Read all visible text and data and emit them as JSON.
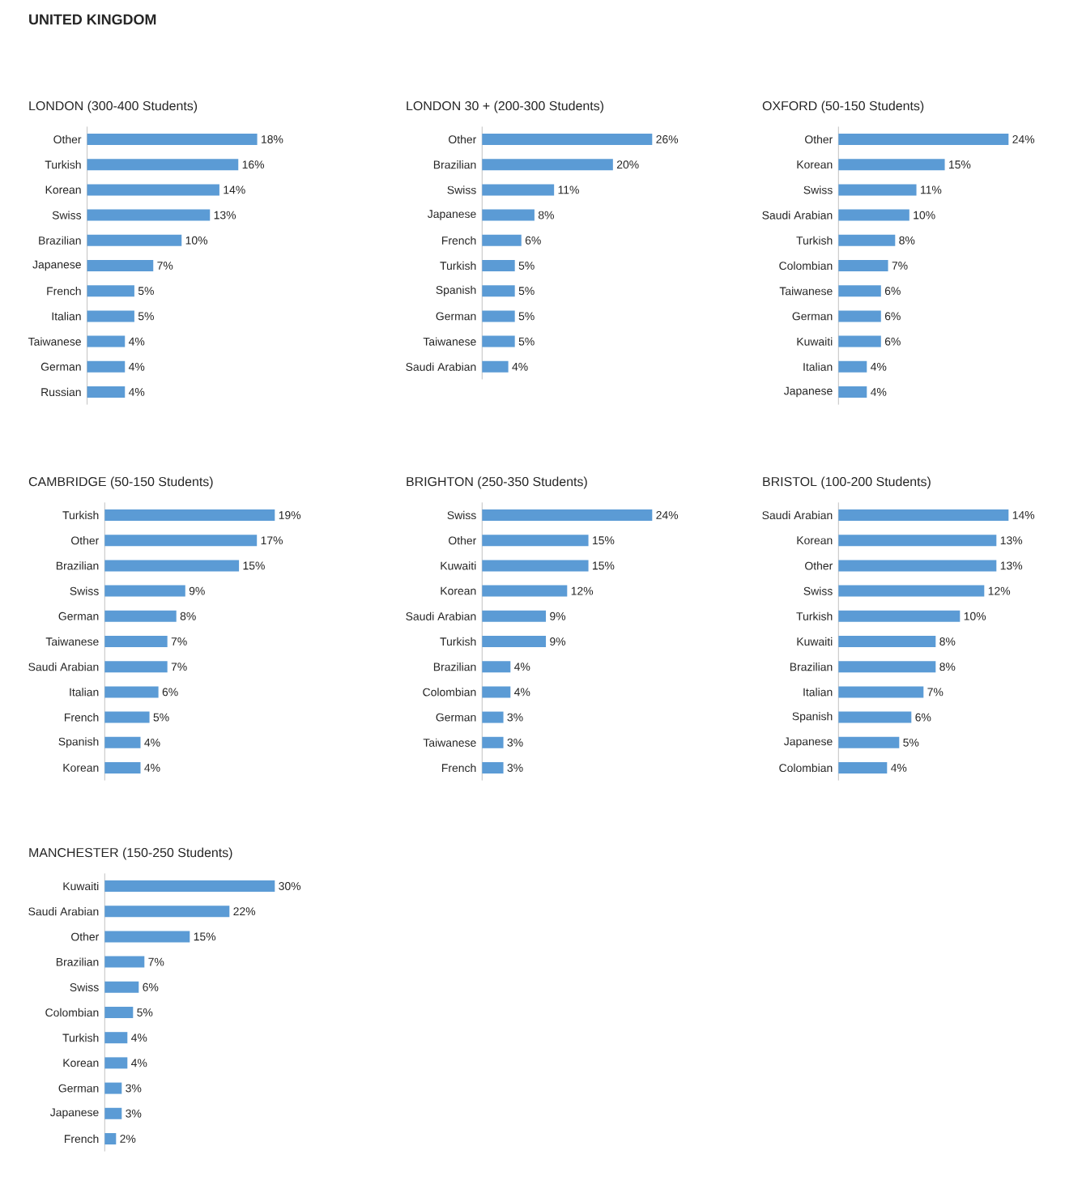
{
  "chart_data": [
    {
      "type": "other",
      "title": "UNITED KINGDOM"
    },
    {
      "type": "bar",
      "orientation": "horizontal",
      "title": "LONDON (300-400 Students)",
      "color": "#5b9bd5",
      "categories": [
        "Other",
        "Turkish",
        "Korean",
        "Swiss",
        "Brazilian",
        "Japanese",
        "French",
        "Italian",
        "Taiwanese",
        "German",
        "Russian"
      ],
      "values": [
        18,
        16,
        14,
        13,
        10,
        7,
        5,
        5,
        4,
        4,
        4
      ],
      "value_labels": [
        "18%",
        "16%",
        "14%",
        "13%",
        "10%",
        "7%",
        "5%",
        "5%",
        "4%",
        "4%",
        "4%"
      ]
    },
    {
      "type": "bar",
      "orientation": "horizontal",
      "title": "LONDON 30 + (200-300 Students)",
      "color": "#5b9bd5",
      "categories": [
        "Other",
        "Brazilian",
        "Swiss",
        "Japanese",
        "French",
        "Turkish",
        "Spanish",
        "German",
        "Taiwanese",
        "Saudi Arabian"
      ],
      "values": [
        26,
        20,
        11,
        8,
        6,
        5,
        5,
        5,
        5,
        4
      ],
      "value_labels": [
        "26%",
        "20%",
        "11%",
        "8%",
        "6%",
        "5%",
        "5%",
        "5%",
        "5%",
        "4%"
      ]
    },
    {
      "type": "bar",
      "orientation": "horizontal",
      "title": "OXFORD (50-150 Students)",
      "color": "#5b9bd5",
      "categories": [
        "Other",
        "Korean",
        "Swiss",
        "Saudi Arabian",
        "Turkish",
        "Colombian",
        "Taiwanese",
        "German",
        "Kuwaiti",
        "Italian",
        "Japanese"
      ],
      "values": [
        24,
        15,
        11,
        10,
        8,
        7,
        6,
        6,
        6,
        4,
        4
      ],
      "value_labels": [
        "24%",
        "15%",
        "11%",
        "10%",
        "8%",
        "7%",
        "6%",
        "6%",
        "6%",
        "4%",
        "4%"
      ]
    },
    {
      "type": "bar",
      "orientation": "horizontal",
      "title": "CAMBRIDGE (50-150 Students)",
      "color": "#5b9bd5",
      "categories": [
        "Turkish",
        "Other",
        "Brazilian",
        "Swiss",
        "German",
        "Taiwanese",
        "Saudi Arabian",
        "Italian",
        "French",
        "Spanish",
        "Korean"
      ],
      "values": [
        19,
        17,
        15,
        9,
        8,
        7,
        7,
        6,
        5,
        4,
        4
      ],
      "value_labels": [
        "19%",
        "17%",
        "15%",
        "9%",
        "8%",
        "7%",
        "7%",
        "6%",
        "5%",
        "4%",
        "4%"
      ]
    },
    {
      "type": "bar",
      "orientation": "horizontal",
      "title": "BRIGHTON (250-350 Students)",
      "color": "#5b9bd5",
      "categories": [
        "Swiss",
        "Other",
        "Kuwaiti",
        "Korean",
        "Saudi Arabian",
        "Turkish",
        "Brazilian",
        "Colombian",
        "German",
        "Taiwanese",
        "French"
      ],
      "values": [
        24,
        15,
        15,
        12,
        9,
        9,
        4,
        4,
        3,
        3,
        3
      ],
      "value_labels": [
        "24%",
        "15%",
        "15%",
        "12%",
        "9%",
        "9%",
        "4%",
        "4%",
        "3%",
        "3%",
        "3%"
      ]
    },
    {
      "type": "bar",
      "orientation": "horizontal",
      "title": "BRISTOL (100-200 Students)",
      "color": "#5b9bd5",
      "categories": [
        "Saudi Arabian",
        "Korean",
        "Other",
        "Swiss",
        "Turkish",
        "Kuwaiti",
        "Brazilian",
        "Italian",
        "Spanish",
        "Japanese",
        "Colombian"
      ],
      "values": [
        14,
        13,
        13,
        12,
        10,
        8,
        8,
        7,
        6,
        5,
        4
      ],
      "value_labels": [
        "14%",
        "13%",
        "13%",
        "12%",
        "10%",
        "8%",
        "8%",
        "7%",
        "6%",
        "5%",
        "4%"
      ]
    },
    {
      "type": "bar",
      "orientation": "horizontal",
      "title": "MANCHESTER (150-250 Students)",
      "color": "#5b9bd5",
      "categories": [
        "Kuwaiti",
        "Saudi Arabian",
        "Other",
        "Brazilian",
        "Swiss",
        "Colombian",
        "Turkish",
        "Korean",
        "German",
        "Japanese",
        "French"
      ],
      "values": [
        30,
        22,
        15,
        7,
        6,
        5,
        4,
        4,
        3,
        3,
        2
      ],
      "value_labels": [
        "30%",
        "22%",
        "15%",
        "7%",
        "6%",
        "5%",
        "4%",
        "4%",
        "3%",
        "3%",
        "2%"
      ]
    }
  ]
}
